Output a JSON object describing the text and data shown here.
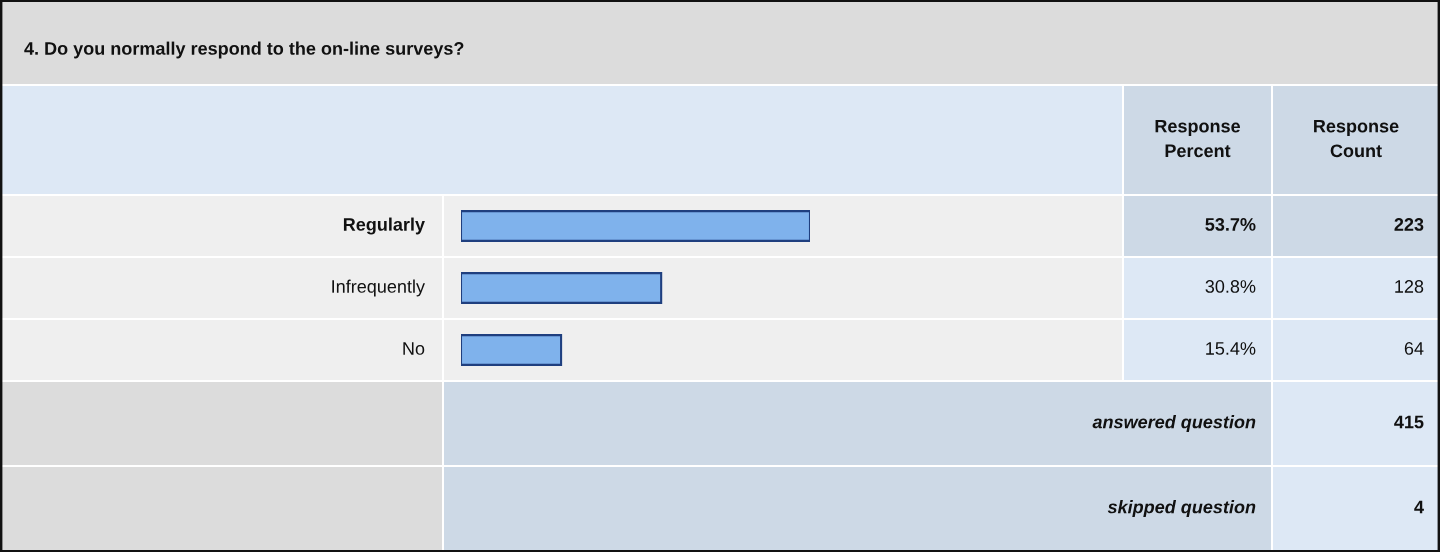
{
  "chart_data": {
    "type": "bar",
    "orientation": "horizontal",
    "title": "4. Do you normally respond to the on-line surveys?",
    "categories": [
      "Regularly",
      "Infrequently",
      "No"
    ],
    "values": [
      53.7,
      30.8,
      15.4
    ],
    "value_labels": [
      "53.7%",
      "30.8%",
      "15.4%"
    ],
    "color": "#7fb2ec",
    "tick_labels": false,
    "annotations": [
      "Response\nPercent",
      "Response\nCount",
      "223",
      "128",
      "64",
      "answered question",
      "415",
      "skipped question",
      "4"
    ]
  }
}
